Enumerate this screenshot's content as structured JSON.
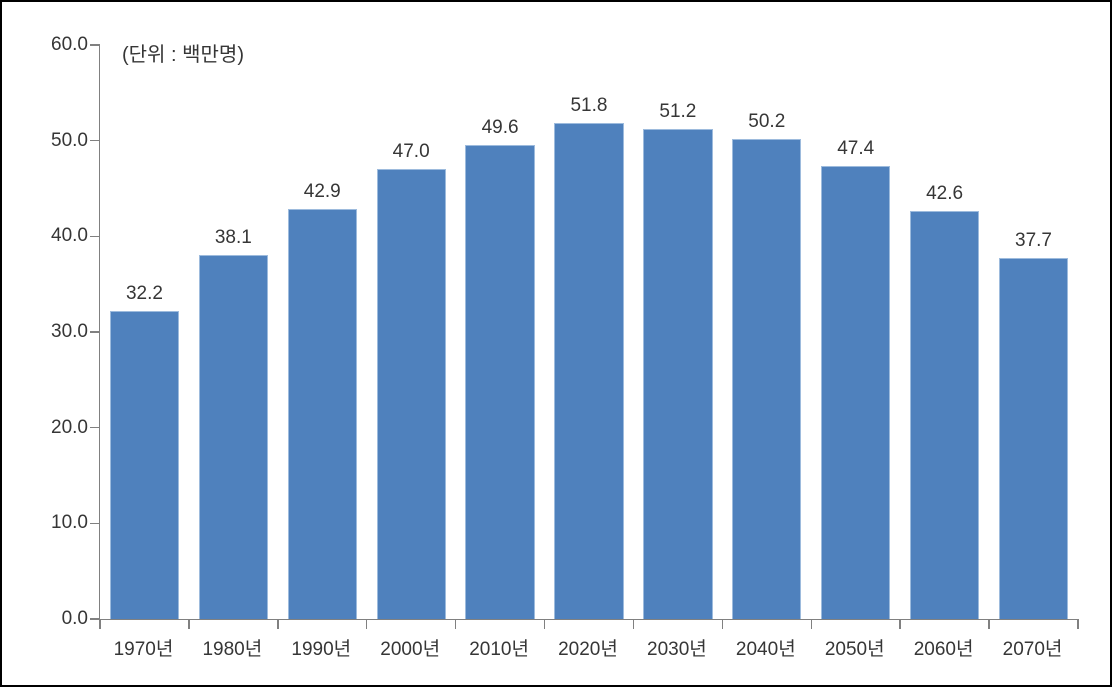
{
  "chart_data": {
    "type": "bar",
    "title": "",
    "unit_label": "(단위 : 백만명)",
    "xlabel": "",
    "ylabel": "",
    "categories": [
      "1970년",
      "1980년",
      "1990년",
      "2000년",
      "2010년",
      "2020년",
      "2030년",
      "2040년",
      "2050년",
      "2060년",
      "2070년"
    ],
    "values": [
      32.2,
      38.1,
      42.9,
      47.0,
      49.6,
      51.8,
      51.2,
      50.2,
      47.4,
      42.6,
      37.7
    ],
    "value_labels": [
      "32.2",
      "38.1",
      "42.9",
      "47.0",
      "49.6",
      "51.8",
      "51.2",
      "50.2",
      "47.4",
      "42.6",
      "37.7"
    ],
    "ylim": [
      0,
      60
    ],
    "yticks": [
      0,
      10,
      20,
      30,
      40,
      50,
      60
    ],
    "ytick_labels": [
      "0.0",
      "10.0",
      "20.0",
      "30.0",
      "40.0",
      "50.0",
      "60.0"
    ],
    "grid": false,
    "legend": "none",
    "colors": {
      "bar_fill": "#4F81BD",
      "bar_border": "#9DBBDD",
      "axis": "#808080",
      "text": "#363636",
      "background": "#FFFFFF",
      "frame_border": "#000000"
    }
  }
}
